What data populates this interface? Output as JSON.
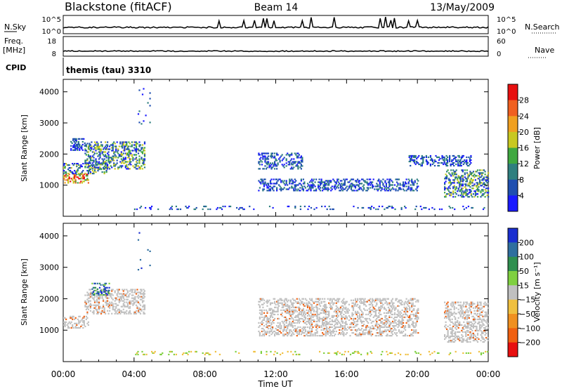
{
  "header": {
    "station": "Blackstone (fitACF)",
    "beam": "Beam 14",
    "date": "13/May/2009"
  },
  "nsky_panel": {
    "left_label": "N.Sky",
    "left_ticks": [
      "10^5",
      "10^0"
    ],
    "right_label": "N.Search",
    "right_ticks": [
      "10^5",
      "10^0"
    ]
  },
  "freq_panel": {
    "left_label_line1": "Freq.",
    "left_label_line2": "[MHz]",
    "left_ticks": [
      "18",
      "8"
    ],
    "right_label": "Nave",
    "right_ticks": [
      "60",
      "0"
    ]
  },
  "cpid_panel": {
    "label": "CPID",
    "text": "themis (tau) 3310"
  },
  "chart_data": [
    {
      "type": "heatmap",
      "title": "",
      "xlabel": "Time UT",
      "ylabel": "Slant Range [km]",
      "x_ticks": [
        "00:00",
        "04:00",
        "08:00",
        "12:00",
        "16:00",
        "20:00",
        "00:00"
      ],
      "y_ticks": [
        1000,
        2000,
        3000,
        4000
      ],
      "colorbar": {
        "label": "Power [dB]",
        "ticks": [
          "4",
          "8",
          "12",
          "16",
          "20",
          "24",
          "28"
        ],
        "colors": [
          "#1a1aff",
          "#1f4fb0",
          "#2f7f7f",
          "#3fa840",
          "#c8c820",
          "#f0a020",
          "#f06020",
          "#e81010"
        ]
      },
      "regions": [
        {
          "t": [
            0.0,
            1.4
          ],
          "range": [
            1050,
            1350
          ],
          "level": "high"
        },
        {
          "t": [
            0.0,
            2.5
          ],
          "range": [
            1350,
            1700
          ],
          "level": "mid"
        },
        {
          "t": [
            1.2,
            4.6
          ],
          "range": [
            1500,
            2400
          ],
          "level": "mid"
        },
        {
          "t": [
            0.4,
            1.2
          ],
          "range": [
            2100,
            2500
          ],
          "level": "low"
        },
        {
          "t": [
            4.2,
            4.9
          ],
          "range": [
            2900,
            4100
          ],
          "level": "sparse"
        },
        {
          "t": [
            11.0,
            13.5
          ],
          "range": [
            1500,
            2000
          ],
          "level": "low"
        },
        {
          "t": [
            11.0,
            20.0
          ],
          "range": [
            800,
            1200
          ],
          "level": "low"
        },
        {
          "t": [
            19.5,
            23.0
          ],
          "range": [
            1600,
            1950
          ],
          "level": "low"
        },
        {
          "t": [
            21.5,
            24.0
          ],
          "range": [
            600,
            1500
          ],
          "level": "mid"
        },
        {
          "t": [
            4.0,
            24.0
          ],
          "range": [
            200,
            300
          ],
          "level": "ground"
        }
      ]
    },
    {
      "type": "heatmap",
      "title": "",
      "xlabel": "Time UT",
      "ylabel": "Slant Range [km]",
      "x_ticks": [
        "00:00",
        "04:00",
        "08:00",
        "12:00",
        "16:00",
        "20:00",
        "00:00"
      ],
      "y_ticks": [
        1000,
        2000,
        3000,
        4000
      ],
      "colorbar": {
        "label": "Velocity [m s⁻¹]",
        "ticks": [
          "200",
          "100",
          "50",
          "15",
          "−15",
          "−50",
          "−100",
          "−200"
        ],
        "colors": [
          "#1a2fd0",
          "#2f6f9f",
          "#2f8f4f",
          "#7fd040",
          "#c0c0c0",
          "#f0c040",
          "#f09020",
          "#f06010",
          "#e81010"
        ]
      },
      "regions": [
        {
          "t": [
            0.0,
            1.4
          ],
          "range": [
            1050,
            1450
          ],
          "level": "gray"
        },
        {
          "t": [
            1.2,
            4.6
          ],
          "range": [
            1500,
            2300
          ],
          "level": "gray"
        },
        {
          "t": [
            1.6,
            2.6
          ],
          "range": [
            2100,
            2500
          ],
          "level": "pos"
        },
        {
          "t": [
            4.2,
            4.9
          ],
          "range": [
            2900,
            4100
          ],
          "level": "sparse"
        },
        {
          "t": [
            11.0,
            20.0
          ],
          "range": [
            800,
            2000
          ],
          "level": "gray"
        },
        {
          "t": [
            21.5,
            24.0
          ],
          "range": [
            600,
            1900
          ],
          "level": "gray"
        },
        {
          "t": [
            4.0,
            24.0
          ],
          "range": [
            200,
            300
          ],
          "level": "ground"
        }
      ]
    }
  ]
}
